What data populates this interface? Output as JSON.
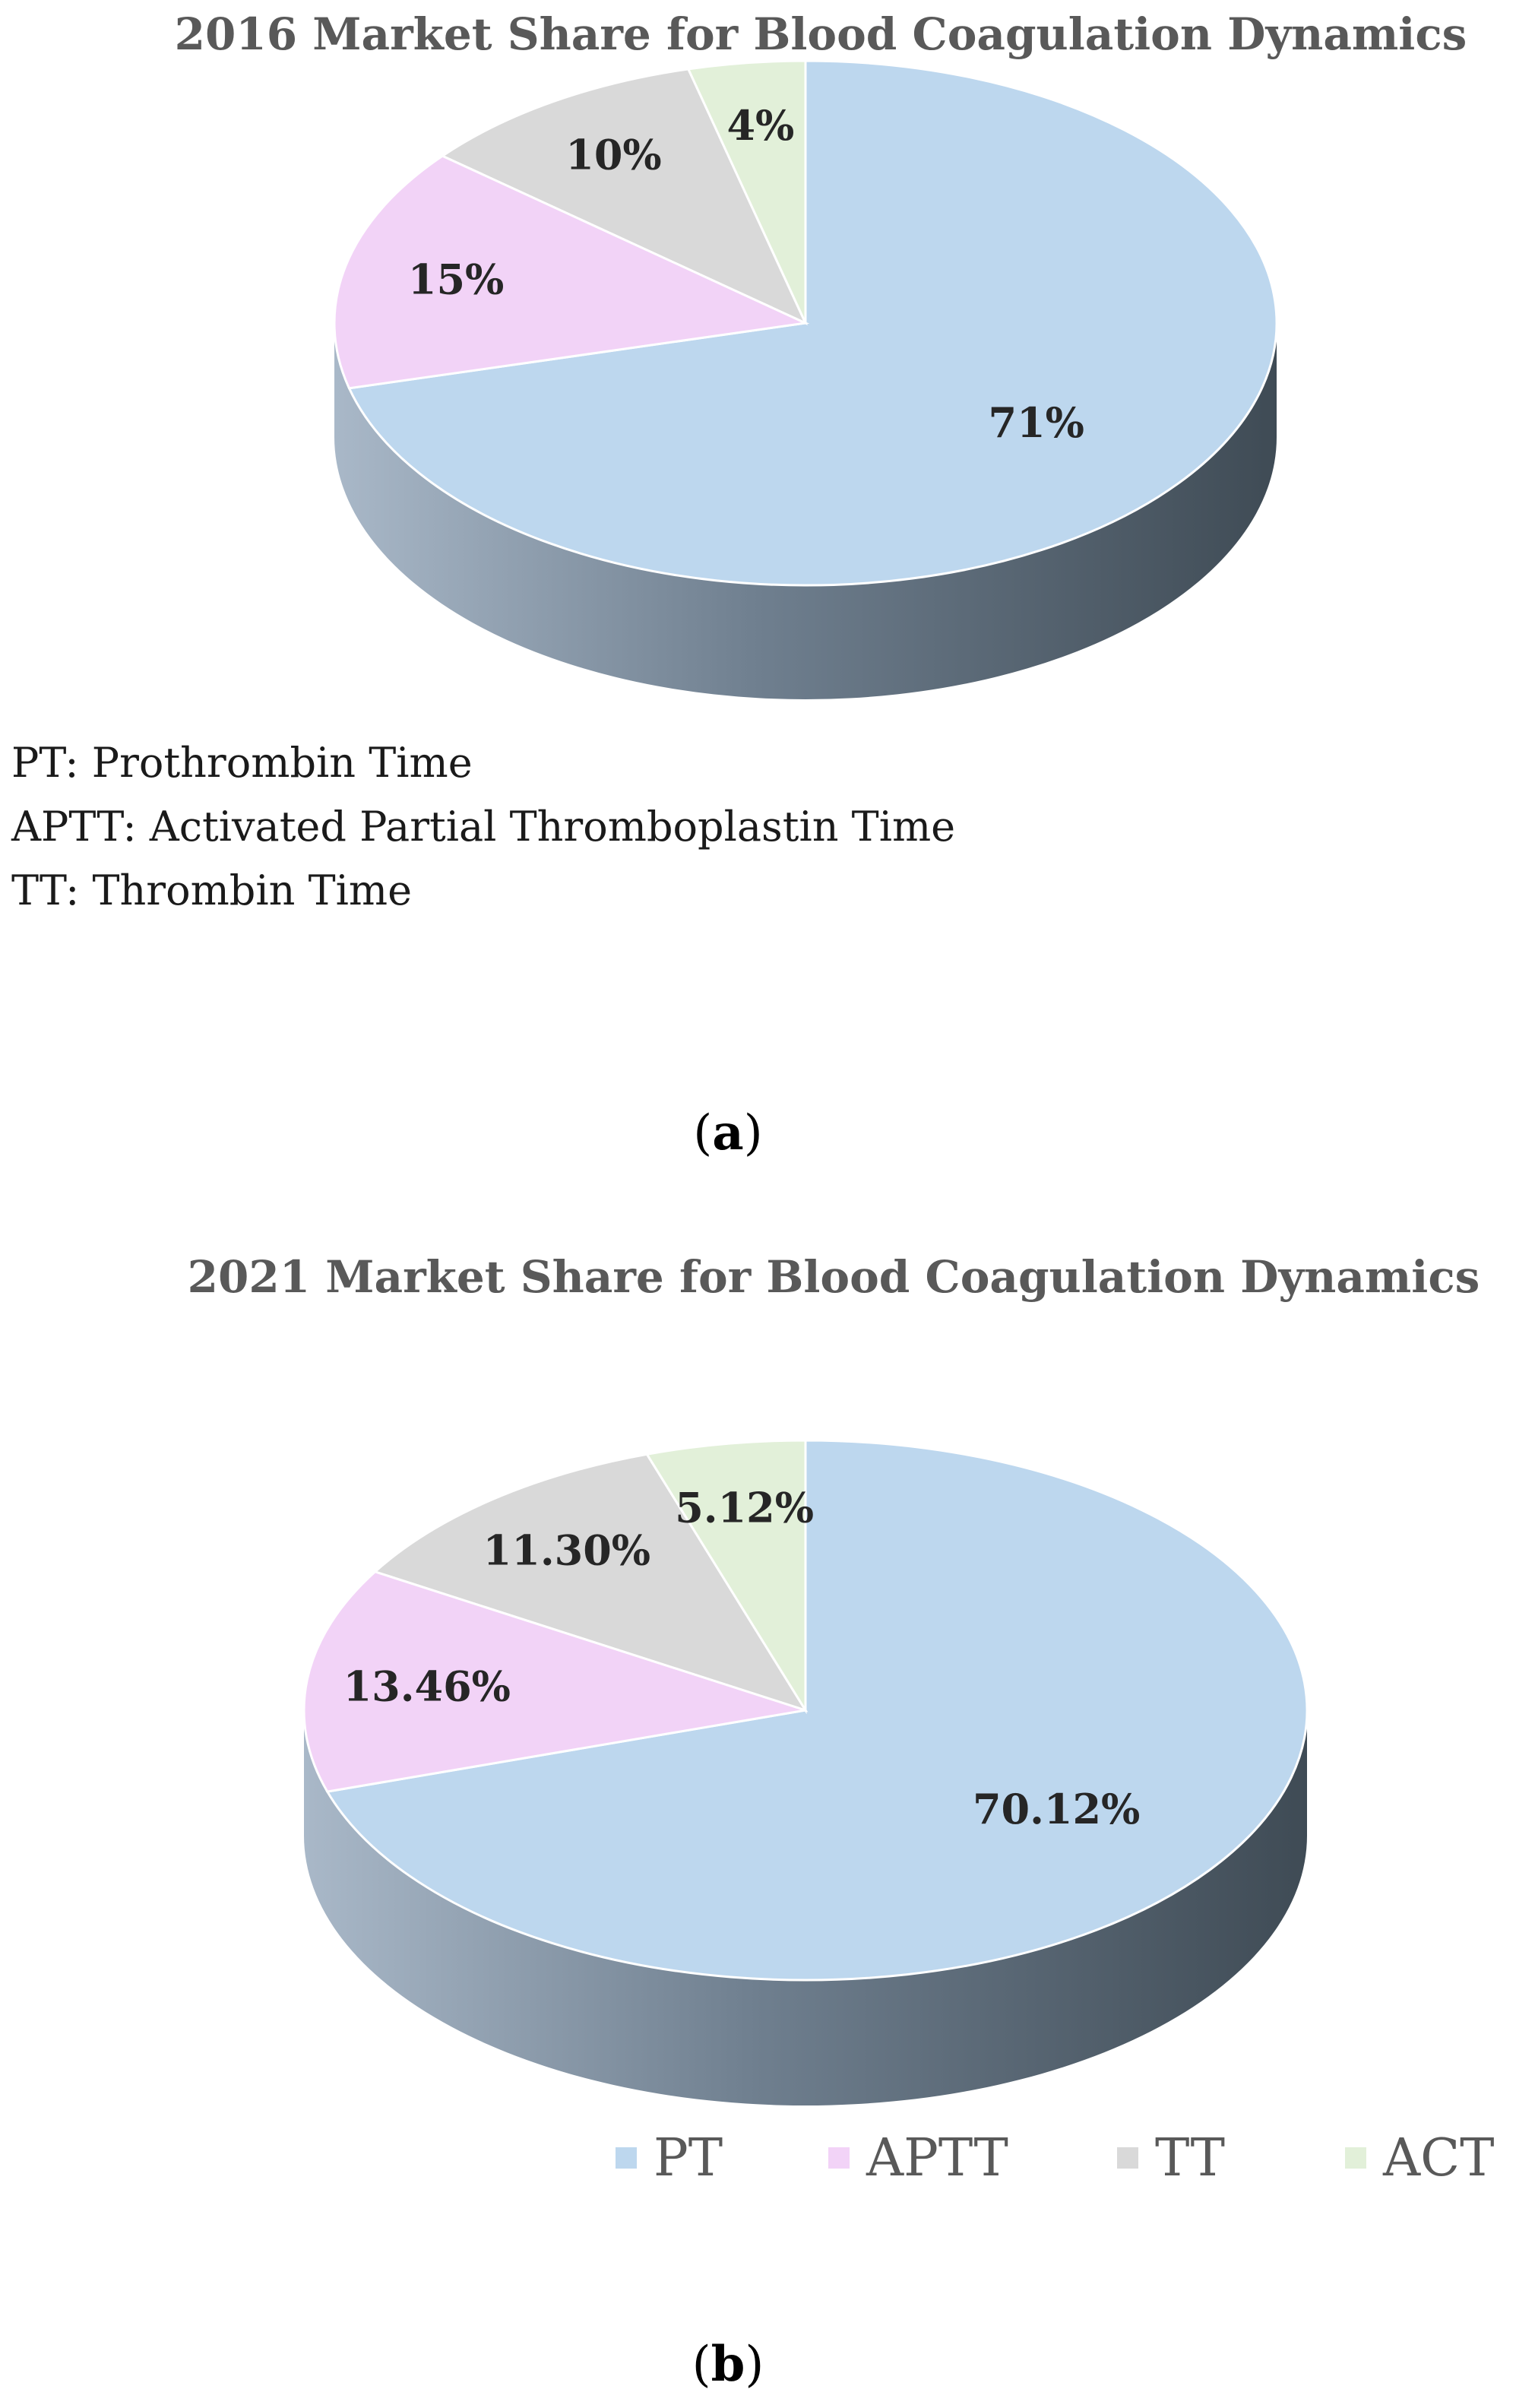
{
  "chart_data": [
    {
      "type": "pie",
      "title": "2016 Market Share for Blood Coagulation Dynamics",
      "categories": [
        "PT",
        "APTT",
        "TT",
        "ACT"
      ],
      "values": [
        71,
        15,
        10,
        4
      ],
      "labels": [
        "71%",
        "15%",
        "10%",
        "4%"
      ],
      "colors": [
        "#bdd7ee",
        "#f2d3f7",
        "#d9d9d9",
        "#e2f0d9"
      ]
    },
    {
      "type": "pie",
      "title": "2021 Market Share for Blood Coagulation Dynamics",
      "categories": [
        "PT",
        "APTT",
        "TT",
        "ACT"
      ],
      "values": [
        70.12,
        13.46,
        11.3,
        5.12
      ],
      "labels": [
        "70.12%",
        "13.46%",
        "11.30%",
        "5.12%"
      ],
      "colors": [
        "#bdd7ee",
        "#f2d3f7",
        "#d9d9d9",
        "#e2f0d9"
      ],
      "legend": [
        "PT",
        "APTT",
        "TT",
        "ACT"
      ],
      "legend_position": "bottom"
    }
  ],
  "abbreviations": [
    "PT: Prothrombin Time",
    "APTT: Activated Partial Thromboplastin Time",
    "TT: Thrombin Time"
  ],
  "panels": {
    "a": {
      "open": "(",
      "letter": "a",
      "close": ")"
    },
    "b": {
      "open": "(",
      "letter": "b",
      "close": ")"
    }
  }
}
